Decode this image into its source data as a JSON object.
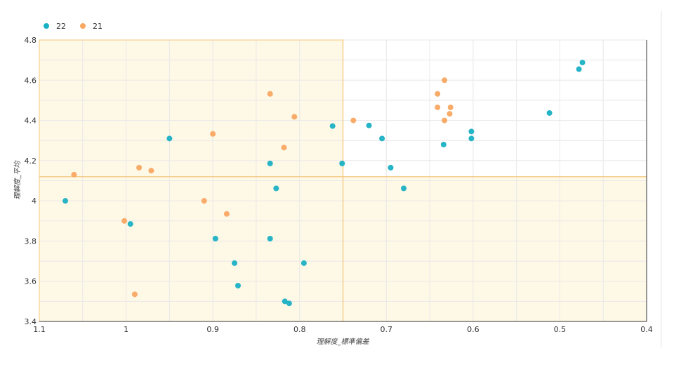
{
  "chart_data": {
    "type": "scatter",
    "title": "",
    "xlabel": "理解度_標準偏差",
    "ylabel": "理解度_平均",
    "xlim": [
      1.1,
      0.4
    ],
    "ylim": [
      3.4,
      4.8
    ],
    "x_reversed": true,
    "grid": true,
    "legend_placement": "top-left",
    "x_ticks": [
      "1.1",
      "1",
      "0.9",
      "0.8",
      "0.7",
      "0.6",
      "0.5",
      "0.4"
    ],
    "y_ticks": [
      "3.4",
      "3.6",
      "3.8",
      "4",
      "4.2",
      "4.4",
      "4.6",
      "4.8"
    ],
    "reference_lines": {
      "x": 0.75,
      "y": 4.12
    },
    "series": [
      {
        "name": "22",
        "color": "#1ab0c4",
        "points": [
          [
            1.07,
            4.0
          ],
          [
            0.995,
            3.885
          ],
          [
            0.95,
            4.31
          ],
          [
            0.897,
            3.812
          ],
          [
            0.875,
            3.69
          ],
          [
            0.871,
            3.578
          ],
          [
            0.834,
            4.186
          ],
          [
            0.834,
            3.812
          ],
          [
            0.827,
            4.062
          ],
          [
            0.817,
            3.5
          ],
          [
            0.812,
            3.49
          ],
          [
            0.795,
            3.69
          ],
          [
            0.762,
            4.372
          ],
          [
            0.751,
            4.186
          ],
          [
            0.72,
            4.375
          ],
          [
            0.705,
            4.31
          ],
          [
            0.695,
            4.165
          ],
          [
            0.68,
            4.062
          ],
          [
            0.634,
            4.28
          ],
          [
            0.602,
            4.345
          ],
          [
            0.602,
            4.31
          ],
          [
            0.512,
            4.437
          ],
          [
            0.478,
            4.655
          ],
          [
            0.474,
            4.688
          ]
        ]
      },
      {
        "name": "21",
        "color": "#f9a862",
        "points": [
          [
            1.06,
            4.13
          ],
          [
            1.002,
            3.9
          ],
          [
            0.99,
            3.535
          ],
          [
            0.985,
            4.165
          ],
          [
            0.971,
            4.15
          ],
          [
            0.91,
            4.0
          ],
          [
            0.9,
            4.333
          ],
          [
            0.884,
            3.935
          ],
          [
            0.834,
            4.532
          ],
          [
            0.818,
            4.265
          ],
          [
            0.806,
            4.418
          ],
          [
            0.738,
            4.4
          ],
          [
            0.641,
            4.532
          ],
          [
            0.641,
            4.465
          ],
          [
            0.633,
            4.6
          ],
          [
            0.633,
            4.4
          ],
          [
            0.626,
            4.465
          ],
          [
            0.627,
            4.433
          ]
        ]
      }
    ]
  }
}
